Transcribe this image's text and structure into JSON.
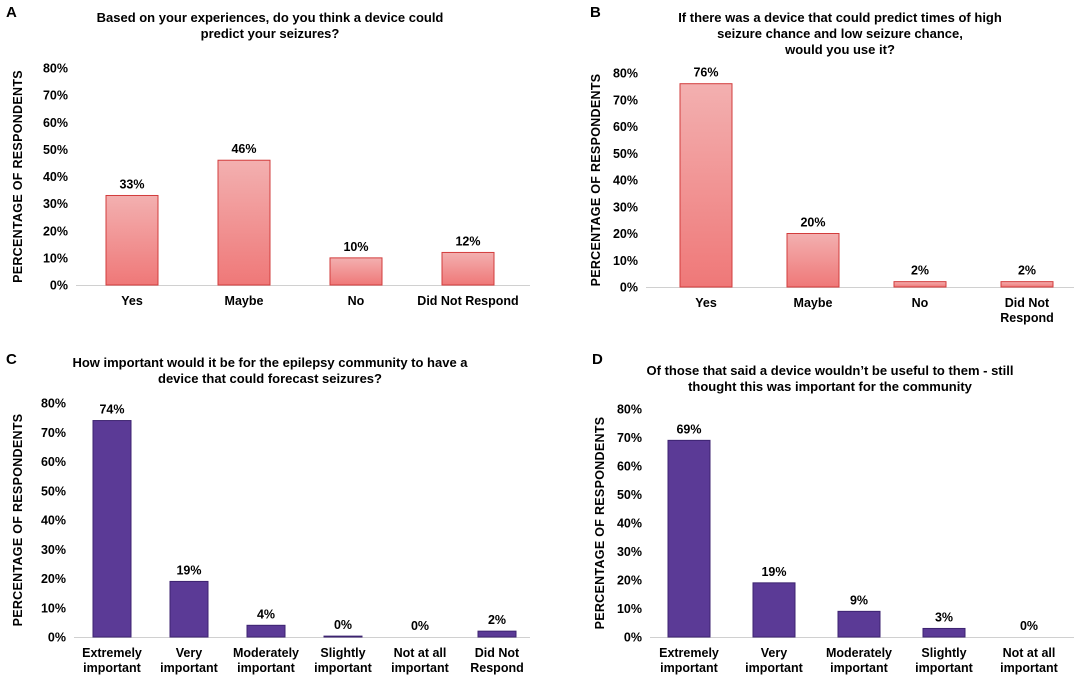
{
  "figure": {
    "panels": [
      {
        "id": "A",
        "letter": "A"
      },
      {
        "id": "B",
        "letter": "B"
      },
      {
        "id": "C",
        "letter": "C"
      },
      {
        "id": "D",
        "letter": "D"
      }
    ]
  },
  "chart_data": [
    {
      "panel": "A",
      "type": "bar",
      "title": "Based on your experiences, do you think a device could\npredict your seizures?",
      "xlabel": "",
      "ylabel": "PERCENTAGE OF RESPONDENTS",
      "categories": [
        [
          "Yes"
        ],
        [
          "Maybe"
        ],
        [
          "No"
        ],
        [
          "Did Not Respond"
        ]
      ],
      "values": [
        33,
        46,
        10,
        12
      ],
      "data_labels": [
        "33%",
        "46%",
        "10%",
        "12%"
      ],
      "ylim": [
        0,
        80
      ],
      "yticks": [
        0,
        10,
        20,
        30,
        40,
        50,
        60,
        70,
        80
      ],
      "ytick_labels": [
        "0%",
        "10%",
        "20%",
        "30%",
        "40%",
        "50%",
        "60%",
        "70%",
        "80%"
      ],
      "bar_style": "gradient",
      "colors": {
        "fill_top": "#f3b0b0",
        "fill_bottom": "#ef7878",
        "stroke": "#d23c3c"
      }
    },
    {
      "panel": "B",
      "type": "bar",
      "title": "If there was a device that could predict times of high\nseizure chance and low seizure chance,\nwould you use it?",
      "xlabel": "",
      "ylabel": "PERCENTAGE OF RESPONDENTS",
      "categories": [
        [
          "Yes"
        ],
        [
          "Maybe"
        ],
        [
          "No"
        ],
        [
          "Did Not",
          "Respond"
        ]
      ],
      "values": [
        76,
        20,
        2,
        2
      ],
      "data_labels": [
        "76%",
        "20%",
        "2%",
        "2%"
      ],
      "ylim": [
        0,
        80
      ],
      "yticks": [
        0,
        10,
        20,
        30,
        40,
        50,
        60,
        70,
        80
      ],
      "ytick_labels": [
        "0%",
        "10%",
        "20%",
        "30%",
        "40%",
        "50%",
        "60%",
        "70%",
        "80%"
      ],
      "bar_style": "gradient",
      "colors": {
        "fill_top": "#f3b0b0",
        "fill_bottom": "#ef7878",
        "stroke": "#d23c3c"
      }
    },
    {
      "panel": "C",
      "type": "bar",
      "title": "How important would it be for the epilepsy community to have a\ndevice that could forecast seizures?",
      "xlabel": "",
      "ylabel": "PERCENTAGE OF RESPONDENTS",
      "categories": [
        [
          "Extremely",
          "important"
        ],
        [
          "Very",
          "important"
        ],
        [
          "Moderately",
          "important"
        ],
        [
          "Slightly",
          "important"
        ],
        [
          "Not at all",
          "important"
        ],
        [
          "Did Not",
          "Respond"
        ]
      ],
      "values": [
        74,
        19,
        4,
        0.3,
        0,
        2
      ],
      "data_labels": [
        "74%",
        "19%",
        "4%",
        "0%",
        "0%",
        "2%"
      ],
      "ylim": [
        0,
        80
      ],
      "yticks": [
        0,
        10,
        20,
        30,
        40,
        50,
        60,
        70,
        80
      ],
      "ytick_labels": [
        "0%",
        "10%",
        "20%",
        "30%",
        "40%",
        "50%",
        "60%",
        "70%",
        "80%"
      ],
      "bar_style": "solid",
      "colors": {
        "fill_top": "#5b3a96",
        "fill_bottom": "#5b3a96",
        "stroke": "#3c2370"
      }
    },
    {
      "panel": "D",
      "type": "bar",
      "title": "Of those that said a device wouldn’t be useful to them - still\nthought this was important for the community",
      "xlabel": "",
      "ylabel": "PERCENTAGE OF RESPONDENTS",
      "categories": [
        [
          "Extremely",
          "important"
        ],
        [
          "Very",
          "important"
        ],
        [
          "Moderately",
          "important"
        ],
        [
          "Slightly",
          "important"
        ],
        [
          "Not at all",
          "important"
        ]
      ],
      "values": [
        69,
        19,
        9,
        3,
        0
      ],
      "data_labels": [
        "69%",
        "19%",
        "9%",
        "3%",
        "0%"
      ],
      "ylim": [
        0,
        80
      ],
      "yticks": [
        0,
        10,
        20,
        30,
        40,
        50,
        60,
        70,
        80
      ],
      "ytick_labels": [
        "0%",
        "10%",
        "20%",
        "30%",
        "40%",
        "50%",
        "60%",
        "70%",
        "80%"
      ],
      "bar_style": "solid",
      "colors": {
        "fill_top": "#5b3a96",
        "fill_bottom": "#5b3a96",
        "stroke": "#3c2370"
      }
    }
  ]
}
